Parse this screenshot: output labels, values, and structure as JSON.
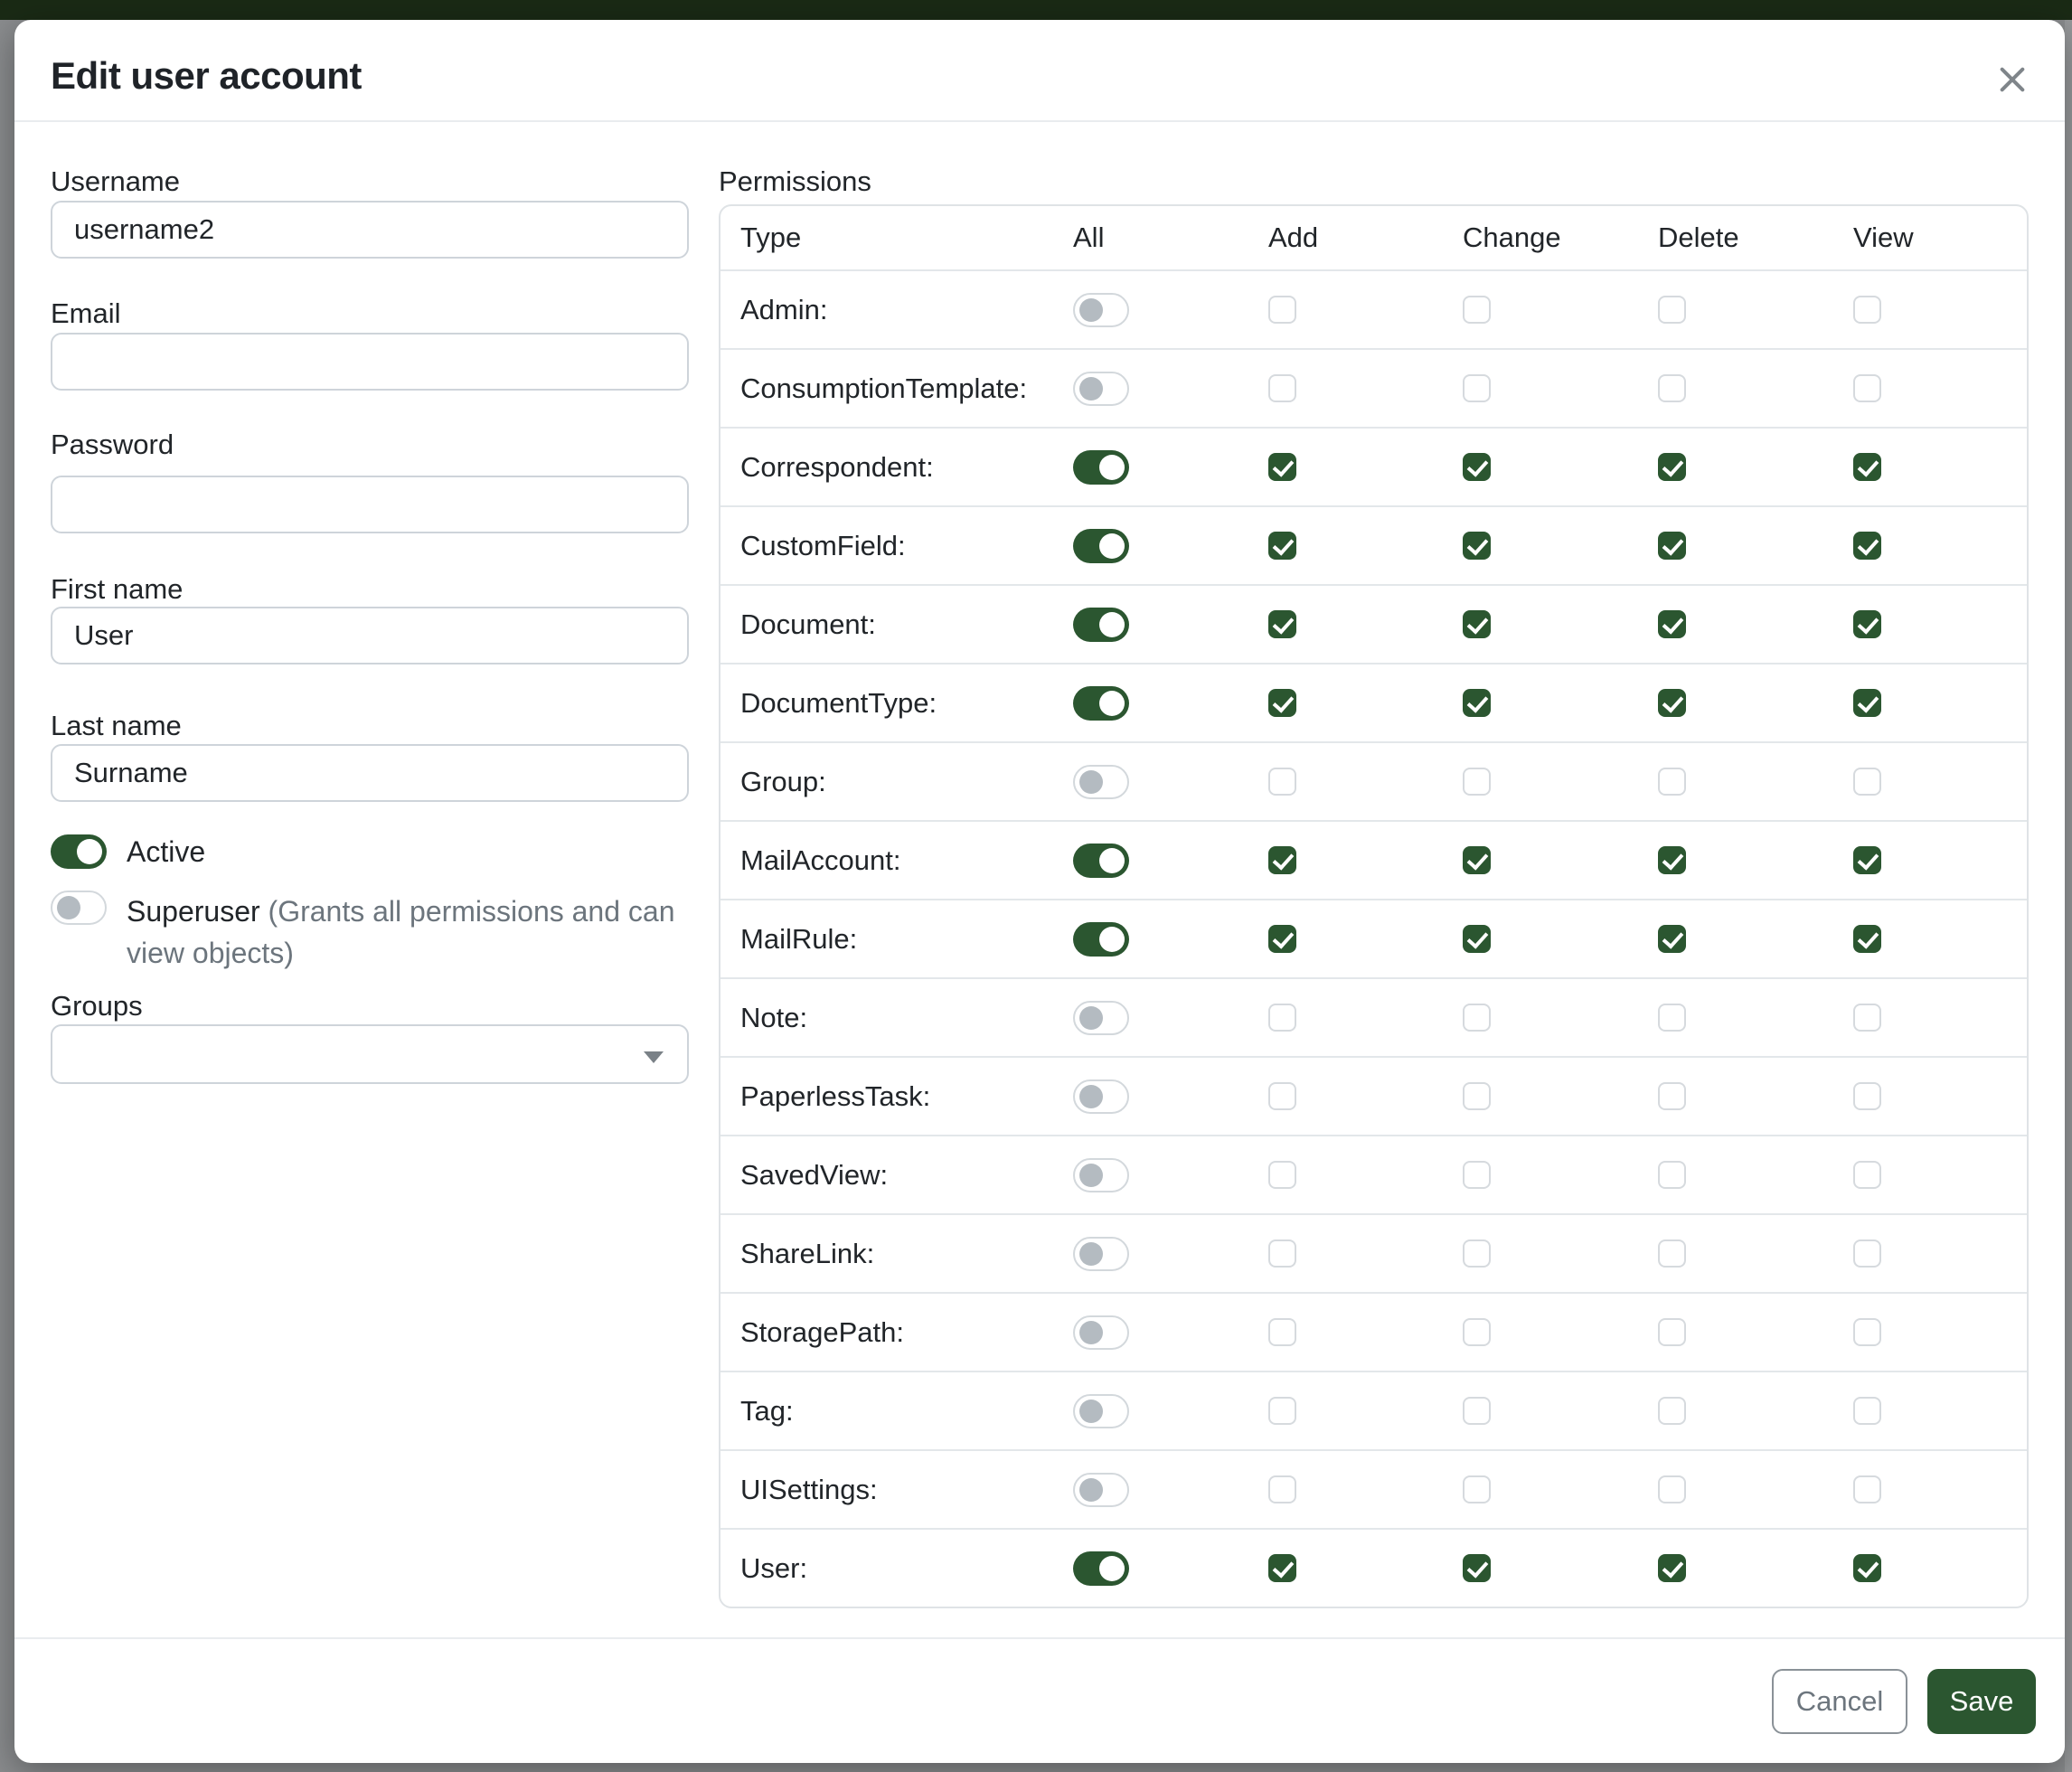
{
  "colors": {
    "accent_green": "#2b5630",
    "navbar_green": "#1a2a15",
    "backdrop_gray": "#8a8c8e"
  },
  "modal": {
    "title": "Edit user account"
  },
  "form": {
    "username": {
      "label": "Username",
      "value": "username2"
    },
    "email": {
      "label": "Email",
      "value": ""
    },
    "password": {
      "label": "Password",
      "value": ""
    },
    "first_name": {
      "label": "First name",
      "value": "User"
    },
    "last_name": {
      "label": "Last name",
      "value": "Surname"
    },
    "active": {
      "label": "Active",
      "on": true
    },
    "superuser": {
      "label": "Superuser",
      "hint": "(Grants all permissions and can view objects)",
      "on": false
    },
    "groups": {
      "label": "Groups",
      "value": ""
    }
  },
  "permissions": {
    "label": "Permissions",
    "columns": [
      "Type",
      "All",
      "Add",
      "Change",
      "Delete",
      "View"
    ],
    "rows": [
      {
        "type": "Admin:",
        "all": false,
        "add": false,
        "change": false,
        "delete": false,
        "view": false
      },
      {
        "type": "ConsumptionTemplate:",
        "all": false,
        "add": false,
        "change": false,
        "delete": false,
        "view": false
      },
      {
        "type": "Correspondent:",
        "all": true,
        "add": true,
        "change": true,
        "delete": true,
        "view": true
      },
      {
        "type": "CustomField:",
        "all": true,
        "add": true,
        "change": true,
        "delete": true,
        "view": true
      },
      {
        "type": "Document:",
        "all": true,
        "add": true,
        "change": true,
        "delete": true,
        "view": true
      },
      {
        "type": "DocumentType:",
        "all": true,
        "add": true,
        "change": true,
        "delete": true,
        "view": true
      },
      {
        "type": "Group:",
        "all": false,
        "add": false,
        "change": false,
        "delete": false,
        "view": false
      },
      {
        "type": "MailAccount:",
        "all": true,
        "add": true,
        "change": true,
        "delete": true,
        "view": true
      },
      {
        "type": "MailRule:",
        "all": true,
        "add": true,
        "change": true,
        "delete": true,
        "view": true
      },
      {
        "type": "Note:",
        "all": false,
        "add": false,
        "change": false,
        "delete": false,
        "view": false
      },
      {
        "type": "PaperlessTask:",
        "all": false,
        "add": false,
        "change": false,
        "delete": false,
        "view": false
      },
      {
        "type": "SavedView:",
        "all": false,
        "add": false,
        "change": false,
        "delete": false,
        "view": false
      },
      {
        "type": "ShareLink:",
        "all": false,
        "add": false,
        "change": false,
        "delete": false,
        "view": false
      },
      {
        "type": "StoragePath:",
        "all": false,
        "add": false,
        "change": false,
        "delete": false,
        "view": false
      },
      {
        "type": "Tag:",
        "all": false,
        "add": false,
        "change": false,
        "delete": false,
        "view": false
      },
      {
        "type": "UISettings:",
        "all": false,
        "add": false,
        "change": false,
        "delete": false,
        "view": false
      },
      {
        "type": "User:",
        "all": true,
        "add": true,
        "change": true,
        "delete": true,
        "view": true
      }
    ]
  },
  "footer": {
    "cancel_label": "Cancel",
    "save_label": "Save"
  }
}
